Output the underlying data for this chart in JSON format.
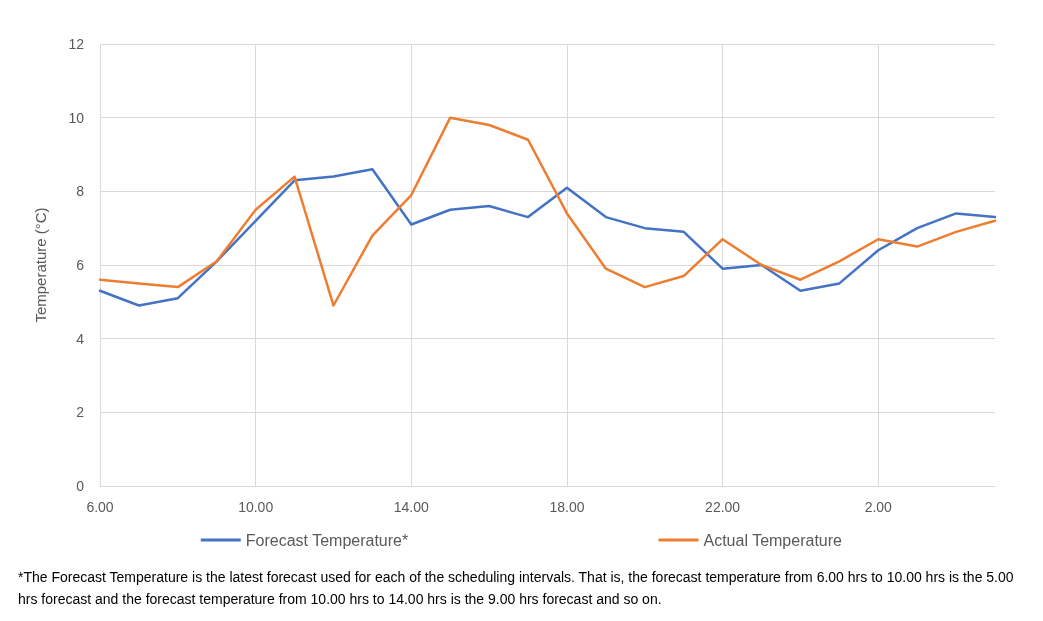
{
  "chart_data": {
    "type": "line",
    "ylabel": "Temperature (°C)",
    "categories": [
      "6.00",
      null,
      null,
      null,
      "10.00",
      null,
      null,
      null,
      "14.00",
      null,
      null,
      null,
      "18.00",
      null,
      null,
      null,
      "22.00",
      null,
      null,
      null,
      "2.00",
      null,
      null,
      null
    ],
    "series": [
      {
        "name": "Forecast Temperature*",
        "color": "#4472c4",
        "values": [
          5.3,
          4.9,
          5.1,
          6.1,
          7.2,
          8.3,
          8.4,
          8.6,
          7.1,
          7.5,
          7.6,
          7.3,
          8.1,
          7.3,
          7.0,
          6.9,
          5.9,
          6.0,
          5.3,
          5.5,
          6.4,
          7.0,
          7.4,
          7.3
        ]
      },
      {
        "name": "Actual Temperature",
        "color": "#ed7d31",
        "values": [
          5.6,
          5.5,
          5.4,
          6.1,
          7.5,
          8.4,
          4.9,
          6.8,
          7.9,
          10.0,
          9.8,
          9.4,
          7.4,
          5.9,
          5.4,
          5.7,
          6.7,
          6.0,
          5.6,
          6.1,
          6.7,
          6.5,
          6.9,
          7.2
        ]
      }
    ],
    "ylim": [
      0,
      12
    ],
    "yticks": [
      0,
      2,
      4,
      6,
      8,
      10,
      12
    ],
    "grid": true,
    "legend": "bottom",
    "marker": "none",
    "line_style": "solid",
    "annotations": [
      "*The Forecast Temperature is the latest forecast used for each of the scheduling intervals. That is, the forecast temperature from 6.00 hrs to 10.00 hrs is the 5.00 hrs forecast and the forecast temperature from 10.00 hrs to 14.00 hrs is the 9.00 hrs forecast and so on."
    ]
  }
}
